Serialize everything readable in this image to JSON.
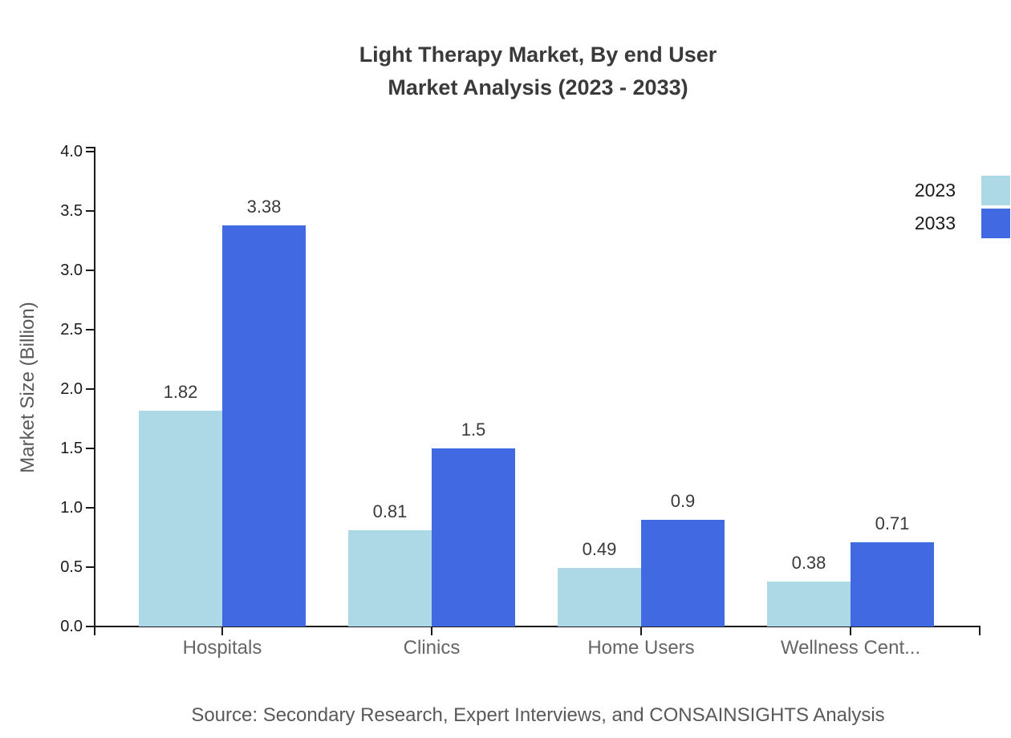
{
  "chart_title": {
    "line1": "Light Therapy Market, By end User",
    "line2": "Market Analysis (2023 - 2033)"
  },
  "chart_data": {
    "type": "bar",
    "title": "Light Therapy Market, By end User\nMarket Analysis (2023 - 2033)",
    "categories": [
      "Hospitals",
      "Clinics",
      "Home Users",
      "Wellness Cent..."
    ],
    "series": [
      {
        "name": "2023",
        "color": "#ADD8E6",
        "values": [
          1.82,
          0.81,
          0.49,
          0.38
        ]
      },
      {
        "name": "2033",
        "color": "#4169E1",
        "values": [
          3.38,
          1.5,
          0.9,
          0.71
        ]
      }
    ],
    "xlabel": "",
    "ylabel": "Market Size (Billion)",
    "ylim": [
      0,
      4.0
    ],
    "ytick_step": 0.5,
    "ytick_format_decimals": 1,
    "grid": false,
    "legend_position": "top-right",
    "value_labels_shown": true
  },
  "footer": {
    "source": "Source: Secondary Research, Expert Interviews, and CONSAINSIGHTS Analysis"
  }
}
